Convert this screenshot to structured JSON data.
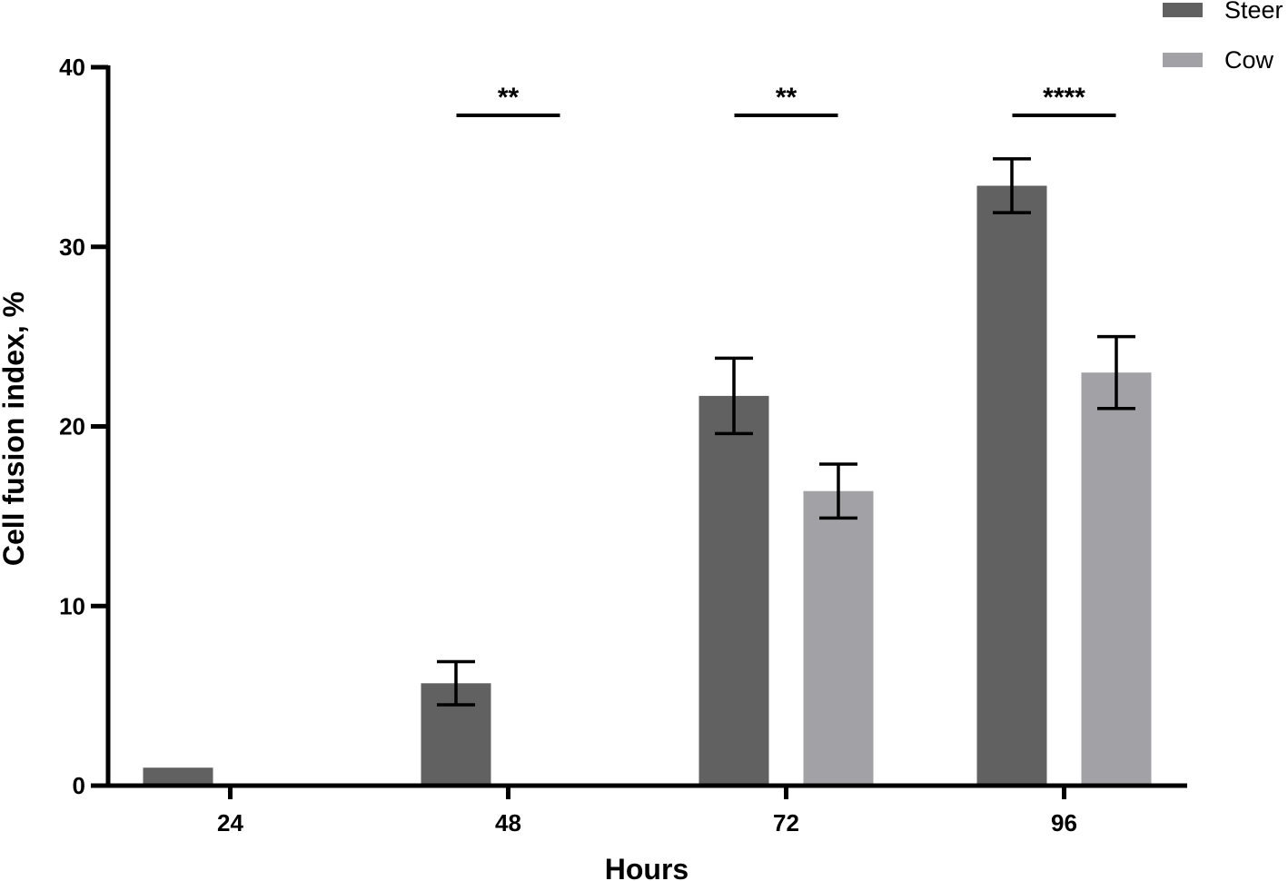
{
  "chart_data": {
    "type": "bar",
    "title": "",
    "xlabel": "Hours",
    "ylabel": "Cell fusion index, %",
    "categories": [
      "24",
      "48",
      "72",
      "96"
    ],
    "ylim": [
      0,
      40
    ],
    "yticks": [
      "0",
      "10",
      "20",
      "30",
      "40"
    ],
    "grid": false,
    "legend_position": "top-right",
    "series": [
      {
        "name": "Steer",
        "color": "#616161",
        "values": [
          1.0,
          5.7,
          21.7,
          33.4
        ],
        "errors": [
          null,
          1.2,
          2.1,
          1.5
        ]
      },
      {
        "name": "Cow",
        "color": "#a2a2a6",
        "values": [
          0,
          0,
          16.4,
          23.0
        ],
        "errors": [
          null,
          null,
          1.5,
          2.0
        ]
      }
    ],
    "significance": [
      {
        "category": "48",
        "label": "**"
      },
      {
        "category": "72",
        "label": "**"
      },
      {
        "category": "96",
        "label": "****"
      }
    ]
  }
}
